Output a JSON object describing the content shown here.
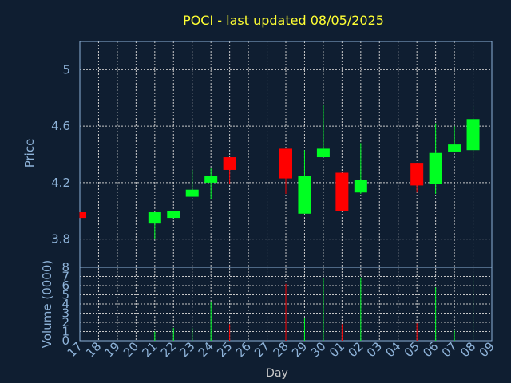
{
  "chart_data": {
    "type": "candlestick",
    "title": "POCI - last updated 08/05/2025",
    "xlabel": "Day",
    "ylabel": "Price",
    "volume_label": "Volume (0000)",
    "colors": {
      "up": "#00ff22",
      "down": "#ff0000",
      "background": "#0f1e31",
      "grid": "#c8c8c8",
      "axis": "#8eb3d9",
      "title": "#ffff33"
    },
    "grid": true,
    "categories": [
      "17",
      "18",
      "19",
      "20",
      "21",
      "22",
      "23",
      "24",
      "25",
      "26",
      "27",
      "28",
      "29",
      "30",
      "01",
      "02",
      "03",
      "04",
      "05",
      "06",
      "07",
      "08",
      "09"
    ],
    "ylim": [
      3.6,
      5.2
    ],
    "yticks": [
      "3.8",
      "4.2",
      "4.6",
      "5"
    ],
    "volume_ylim": [
      0,
      8
    ],
    "volume_ticks": [
      "0",
      "1",
      "2",
      "3",
      "4",
      "5",
      "6",
      "7",
      "8"
    ],
    "candles": [
      {
        "x": "17",
        "open": 3.99,
        "high": 3.99,
        "low": 3.95,
        "close": 3.95,
        "volume": 0
      },
      {
        "x": "21",
        "open": 3.91,
        "high": 3.99,
        "low": 3.8,
        "close": 3.99,
        "volume": 1
      },
      {
        "x": "22",
        "open": 3.95,
        "high": 4.0,
        "low": 3.95,
        "close": 4.0,
        "volume": 1.4
      },
      {
        "x": "23",
        "open": 4.1,
        "high": 4.29,
        "low": 4.1,
        "close": 4.15,
        "volume": 1.4
      },
      {
        "x": "24",
        "open": 4.2,
        "high": 4.3,
        "low": 4.08,
        "close": 4.25,
        "volume": 4.2
      },
      {
        "x": "25",
        "open": 4.38,
        "high": 4.38,
        "low": 4.19,
        "close": 4.29,
        "volume": 1.8
      },
      {
        "x": "28",
        "open": 4.44,
        "high": 4.44,
        "low": 4.12,
        "close": 4.23,
        "volume": 6.2
      },
      {
        "x": "29",
        "open": 3.98,
        "high": 4.43,
        "low": 3.98,
        "close": 4.25,
        "volume": 2.5
      },
      {
        "x": "30",
        "open": 4.38,
        "high": 4.75,
        "low": 4.38,
        "close": 4.44,
        "volume": 6.8
      },
      {
        "x": "01",
        "open": 4.27,
        "high": 4.27,
        "low": 4.0,
        "close": 4.0,
        "volume": 1.8
      },
      {
        "x": "02",
        "open": 4.13,
        "high": 4.48,
        "low": 4.12,
        "close": 4.22,
        "volume": 6.9
      },
      {
        "x": "05",
        "open": 4.34,
        "high": 4.34,
        "low": 4.13,
        "close": 4.18,
        "volume": 1.9
      },
      {
        "x": "06",
        "open": 4.19,
        "high": 4.62,
        "low": 4.12,
        "close": 4.41,
        "volume": 5.8
      },
      {
        "x": "07",
        "open": 4.42,
        "high": 4.6,
        "low": 4.42,
        "close": 4.47,
        "volume": 1.1
      },
      {
        "x": "08",
        "open": 4.43,
        "high": 4.74,
        "low": 4.35,
        "close": 4.65,
        "volume": 7.2
      }
    ]
  }
}
